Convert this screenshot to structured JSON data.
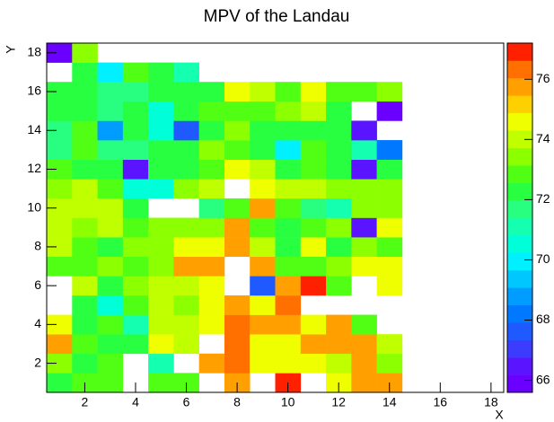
{
  "chart_data": {
    "type": "heatmap",
    "title": "MPV of the Landau",
    "x_label": "X",
    "y_label": "Y",
    "x": [
      1,
      2,
      3,
      4,
      5,
      6,
      7,
      8,
      9,
      10,
      11,
      12,
      13,
      14,
      15,
      16,
      17,
      18
    ],
    "y": [
      1,
      2,
      3,
      4,
      5,
      6,
      7,
      8,
      9,
      10,
      11,
      12,
      13,
      14,
      15,
      16,
      17,
      18
    ],
    "xlim": [
      0.5,
      18.5
    ],
    "ylim": [
      0.5,
      18.5
    ],
    "zlim": [
      65.6,
      77.2
    ],
    "xticks": [
      2,
      4,
      6,
      8,
      10,
      12,
      14,
      16,
      18
    ],
    "yticks": [
      2,
      4,
      6,
      8,
      10,
      12,
      14,
      16,
      18
    ],
    "zticks": [
      66,
      68,
      70,
      72,
      74,
      76
    ],
    "z": [
      [
        72.5,
        73,
        73,
        null,
        73,
        73,
        null,
        75.5,
        null,
        77,
        null,
        74.5,
        75.5,
        76,
        null,
        null,
        null,
        null
      ],
      [
        73.5,
        72.5,
        73,
        null,
        71,
        null,
        75.5,
        76.5,
        74.5,
        74.5,
        74.5,
        74,
        75.5,
        73.5,
        null,
        null,
        null,
        null
      ],
      [
        75.5,
        73,
        72.5,
        72.5,
        74.5,
        74,
        null,
        76.5,
        74.5,
        74.5,
        76,
        75.5,
        75.5,
        74,
        null,
        null,
        null,
        null
      ],
      [
        74.5,
        72,
        73,
        71,
        74,
        74,
        74.5,
        76.5,
        76,
        75.5,
        74.5,
        75.5,
        73,
        null,
        null,
        null,
        null,
        null
      ],
      [
        null,
        72.5,
        70.5,
        73,
        74,
        73.5,
        74.5,
        75.5,
        74.5,
        76.5,
        null,
        null,
        null,
        null,
        null,
        null,
        null,
        null
      ],
      [
        null,
        74,
        72.5,
        73.5,
        74,
        74,
        74.5,
        null,
        67.5,
        76,
        77,
        73,
        null,
        74.5,
        null,
        null,
        null,
        null
      ],
      [
        73,
        73,
        73.5,
        73,
        73.5,
        75.5,
        75.5,
        null,
        76,
        73,
        73,
        73.5,
        74.5,
        74.5,
        null,
        null,
        null,
        null
      ],
      [
        74,
        73,
        72.5,
        73.5,
        73.5,
        74.5,
        74.5,
        75.5,
        74,
        72.5,
        74.5,
        72.5,
        73.5,
        73,
        null,
        null,
        null,
        null
      ],
      [
        74,
        73.5,
        74,
        73,
        73.5,
        73.5,
        73.5,
        75.5,
        73,
        72.5,
        73,
        73.5,
        66.5,
        74.5,
        null,
        null,
        null,
        null
      ],
      [
        74,
        74,
        74,
        72,
        null,
        null,
        71.5,
        73,
        75.5,
        73,
        71.5,
        71,
        73.5,
        73.5,
        null,
        null,
        null,
        null
      ],
      [
        73.5,
        74,
        73,
        70.5,
        70.5,
        73.5,
        74,
        null,
        74.5,
        74,
        74,
        73.5,
        73.5,
        73.5,
        null,
        null,
        null,
        null
      ],
      [
        73,
        72,
        72,
        66.5,
        72,
        72,
        73,
        74.5,
        74,
        72.5,
        73,
        72.5,
        66.5,
        72,
        null,
        null,
        null,
        null
      ],
      [
        71.5,
        73,
        71.5,
        71.5,
        72.5,
        72.5,
        73.5,
        73,
        72.5,
        70,
        73,
        72.5,
        71,
        68,
        null,
        null,
        null,
        null
      ],
      [
        71.5,
        73,
        68.5,
        72,
        70.5,
        67.5,
        72.5,
        73.5,
        72.5,
        72.5,
        72,
        72.5,
        66.5,
        null,
        null,
        null,
        null,
        null
      ],
      [
        72,
        72.5,
        71.5,
        72,
        70.5,
        72,
        73,
        73,
        73,
        73.5,
        74,
        72,
        null,
        66,
        null,
        null,
        null,
        null
      ],
      [
        72,
        72,
        71.5,
        71.5,
        72,
        72,
        72.5,
        74.5,
        74,
        73,
        74.5,
        73,
        73,
        73.5,
        null,
        null,
        null,
        null
      ],
      [
        null,
        72.5,
        70,
        73,
        72.5,
        71,
        null,
        null,
        null,
        null,
        null,
        null,
        null,
        null,
        null,
        null,
        null,
        null
      ],
      [
        66,
        73.5,
        null,
        null,
        null,
        null,
        null,
        null,
        null,
        null,
        null,
        null,
        null,
        null,
        null,
        null,
        null,
        null
      ]
    ]
  }
}
